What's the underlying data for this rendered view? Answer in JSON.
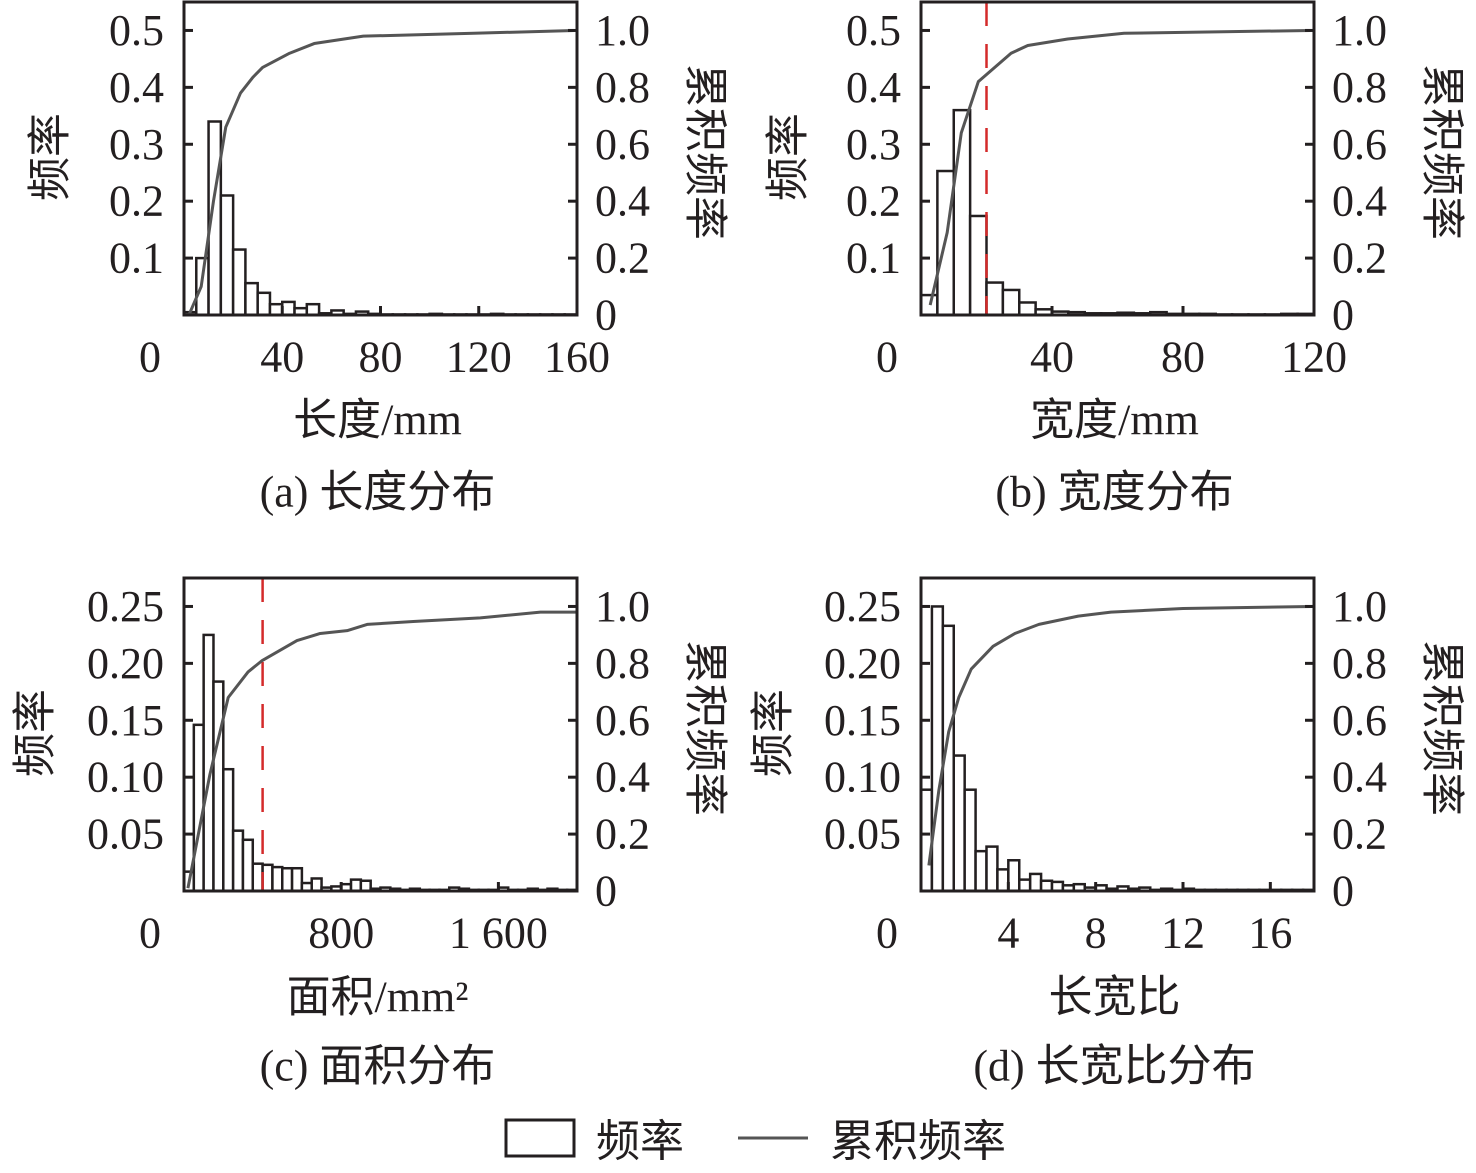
{
  "legend": {
    "bar_label": "频率",
    "line_label": "累积频率"
  },
  "colors": {
    "axis": "#231f20",
    "bar_edge": "#231f20",
    "bar_fill": "#ffffff",
    "cumulative_line": "#555555",
    "threshold_line": "#d42a2a"
  },
  "chart_data": [
    {
      "type": "bar+line",
      "caption": "(a) 长度分布",
      "xlabel": "长度/mm",
      "ylabel": "频率",
      "y2label": "累积频率",
      "origin_label": "0",
      "xlim": [
        0,
        160
      ],
      "ylim": [
        0,
        0.55
      ],
      "y2lim": [
        0,
        1.1
      ],
      "xticks": [
        {
          "v": 40,
          "label": "40"
        },
        {
          "v": 80,
          "label": "80"
        },
        {
          "v": 120,
          "label": "120"
        },
        {
          "v": 160,
          "label": "160"
        }
      ],
      "yticks": [
        {
          "v": 0.1,
          "label": "0.1"
        },
        {
          "v": 0.2,
          "label": "0.2"
        },
        {
          "v": 0.3,
          "label": "0.3"
        },
        {
          "v": 0.4,
          "label": "0.4"
        },
        {
          "v": 0.5,
          "label": "0.5"
        }
      ],
      "y2ticks": [
        {
          "v": 0,
          "label": "0"
        },
        {
          "v": 0.2,
          "label": "0.2"
        },
        {
          "v": 0.4,
          "label": "0.4"
        },
        {
          "v": 0.6,
          "label": "0.6"
        },
        {
          "v": 0.8,
          "label": "0.8"
        },
        {
          "v": 1.0,
          "label": "1.0"
        }
      ],
      "bin_start": 0,
      "bin_width": 5,
      "frequency": [
        0.005,
        0.1,
        0.34,
        0.21,
        0.115,
        0.056,
        0.039,
        0.019,
        0.023,
        0.012,
        0.019,
        0.003,
        0.008,
        0.002,
        0.006,
        0.002,
        0.001,
        0.001,
        0.001,
        0.001,
        0.002,
        0.001,
        0.001,
        0.001,
        0.001,
        0.002,
        0.001,
        0.001,
        0.001,
        0.001,
        0.001,
        0.001
      ],
      "cumulative": {
        "x": [
          2,
          7,
          12,
          17,
          23,
          28,
          32,
          43,
          53,
          73,
          118,
          159
        ],
        "y": [
          0.0,
          0.1,
          0.4,
          0.66,
          0.78,
          0.835,
          0.87,
          0.92,
          0.954,
          0.98,
          0.99,
          1.0
        ]
      },
      "threshold": null
    },
    {
      "type": "bar+line",
      "caption": "(b) 宽度分布",
      "xlabel": "宽度/mm",
      "ylabel": "频率",
      "y2label": "累积频率",
      "origin_label": "0",
      "xlim": [
        0,
        120
      ],
      "ylim": [
        0,
        0.55
      ],
      "y2lim": [
        0,
        1.1
      ],
      "xticks": [
        {
          "v": 40,
          "label": "40"
        },
        {
          "v": 80,
          "label": "80"
        },
        {
          "v": 120,
          "label": "120"
        }
      ],
      "yticks": [
        {
          "v": 0.1,
          "label": "0.1"
        },
        {
          "v": 0.2,
          "label": "0.2"
        },
        {
          "v": 0.3,
          "label": "0.3"
        },
        {
          "v": 0.4,
          "label": "0.4"
        },
        {
          "v": 0.5,
          "label": "0.5"
        }
      ],
      "y2ticks": [
        {
          "v": 0,
          "label": "0"
        },
        {
          "v": 0.2,
          "label": "0.2"
        },
        {
          "v": 0.4,
          "label": "0.4"
        },
        {
          "v": 0.6,
          "label": "0.6"
        },
        {
          "v": 0.8,
          "label": "0.8"
        },
        {
          "v": 1.0,
          "label": "1.0"
        }
      ],
      "bin_start": 0,
      "bin_width": 5,
      "frequency": [
        0.035,
        0.253,
        0.36,
        0.174,
        0.057,
        0.044,
        0.022,
        0.01,
        0.006,
        0.005,
        0.003,
        0.003,
        0.004,
        0.003,
        0.005,
        0.002,
        0.002,
        0.002,
        0.001,
        0.001,
        0.001,
        0.001,
        0.002,
        0.002
      ],
      "cumulative": {
        "x": [
          2.8,
          8,
          12.3,
          17.5,
          27.5,
          32.6,
          44.8,
          62,
          119
        ],
        "y": [
          0.035,
          0.29,
          0.64,
          0.82,
          0.92,
          0.947,
          0.97,
          0.99,
          1.0
        ]
      },
      "threshold": 20
    },
    {
      "type": "bar+line",
      "caption": "(c) 面积分布",
      "xlabel": "面积/mm²",
      "ylabel": "频率",
      "y2label": "累积频率",
      "origin_label": "0",
      "xlim": [
        0,
        2000
      ],
      "ylim": [
        0,
        0.275
      ],
      "y2lim": [
        0,
        1.1
      ],
      "xticks": [
        {
          "v": 800,
          "label": "800"
        },
        {
          "v": 1600,
          "label": "1 600"
        }
      ],
      "yticks": [
        {
          "v": 0.05,
          "label": "0.05"
        },
        {
          "v": 0.1,
          "label": "0.10"
        },
        {
          "v": 0.15,
          "label": "0.15"
        },
        {
          "v": 0.2,
          "label": "0.20"
        },
        {
          "v": 0.25,
          "label": "0.25"
        }
      ],
      "y2ticks": [
        {
          "v": 0,
          "label": "0"
        },
        {
          "v": 0.2,
          "label": "0.2"
        },
        {
          "v": 0.4,
          "label": "0.4"
        },
        {
          "v": 0.6,
          "label": "0.6"
        },
        {
          "v": 0.8,
          "label": "0.8"
        },
        {
          "v": 1.0,
          "label": "1.0"
        }
      ],
      "bin_start": 0,
      "bin_width": 50,
      "frequency": [
        0.017,
        0.146,
        0.225,
        0.184,
        0.107,
        0.053,
        0.045,
        0.024,
        0.023,
        0.021,
        0.02,
        0.02,
        0.007,
        0.011,
        0.003,
        0.004,
        0.006,
        0.01,
        0.009,
        0.002,
        0.003,
        0.002,
        0.001,
        0.002,
        0.001,
        0.001,
        0.001,
        0.003,
        0.002,
        0.001,
        0.001,
        0.001,
        0.003,
        0.001,
        0.001,
        0.002,
        0.001,
        0.002,
        0.001,
        0.001
      ],
      "cumulative": {
        "x": [
          20,
          132,
          225,
          326,
          398,
          575,
          693,
          830,
          932,
          1167,
          1508,
          1814,
          2000
        ],
        "y": [
          0.01,
          0.41,
          0.68,
          0.77,
          0.81,
          0.88,
          0.905,
          0.915,
          0.937,
          0.947,
          0.96,
          0.98,
          0.98
        ]
      },
      "threshold": 400
    },
    {
      "type": "bar+line",
      "caption": "(d) 长宽比分布",
      "xlabel": "长宽比",
      "ylabel": "频率",
      "y2label": "累积频率",
      "origin_label": "0",
      "xlim": [
        0,
        18
      ],
      "ylim": [
        0,
        0.275
      ],
      "y2lim": [
        0,
        1.1
      ],
      "xticks": [
        {
          "v": 4,
          "label": "4"
        },
        {
          "v": 8,
          "label": "8"
        },
        {
          "v": 12,
          "label": "12"
        },
        {
          "v": 16,
          "label": "16"
        }
      ],
      "yticks": [
        {
          "v": 0.05,
          "label": "0.05"
        },
        {
          "v": 0.1,
          "label": "0.10"
        },
        {
          "v": 0.15,
          "label": "0.15"
        },
        {
          "v": 0.2,
          "label": "0.20"
        },
        {
          "v": 0.25,
          "label": "0.25"
        }
      ],
      "y2ticks": [
        {
          "v": 0,
          "label": "0"
        },
        {
          "v": 0.2,
          "label": "0.2"
        },
        {
          "v": 0.4,
          "label": "0.4"
        },
        {
          "v": 0.6,
          "label": "0.6"
        },
        {
          "v": 0.8,
          "label": "0.8"
        },
        {
          "v": 1.0,
          "label": "1.0"
        }
      ],
      "bin_start": 0,
      "bin_width": 0.5,
      "frequency": [
        0.089,
        0.25,
        0.233,
        0.119,
        0.089,
        0.035,
        0.039,
        0.019,
        0.027,
        0.01,
        0.015,
        0.009,
        0.008,
        0.005,
        0.006,
        0.003,
        0.005,
        0.002,
        0.004,
        0.002,
        0.003,
        0.001,
        0.002,
        0.001,
        0.002,
        0.001,
        0.001,
        0.001,
        0.001,
        0.001,
        0.001,
        0.001,
        0.001,
        0.001,
        0.001,
        0.001
      ],
      "cumulative": {
        "x": [
          0.36,
          0.82,
          1.27,
          1.73,
          2.3,
          3.3,
          4.3,
          5.4,
          7.2,
          8.7,
          12,
          17.9
        ],
        "y": [
          0.09,
          0.355,
          0.56,
          0.68,
          0.78,
          0.86,
          0.905,
          0.937,
          0.966,
          0.98,
          0.993,
          1.0
        ]
      },
      "threshold": null
    }
  ]
}
